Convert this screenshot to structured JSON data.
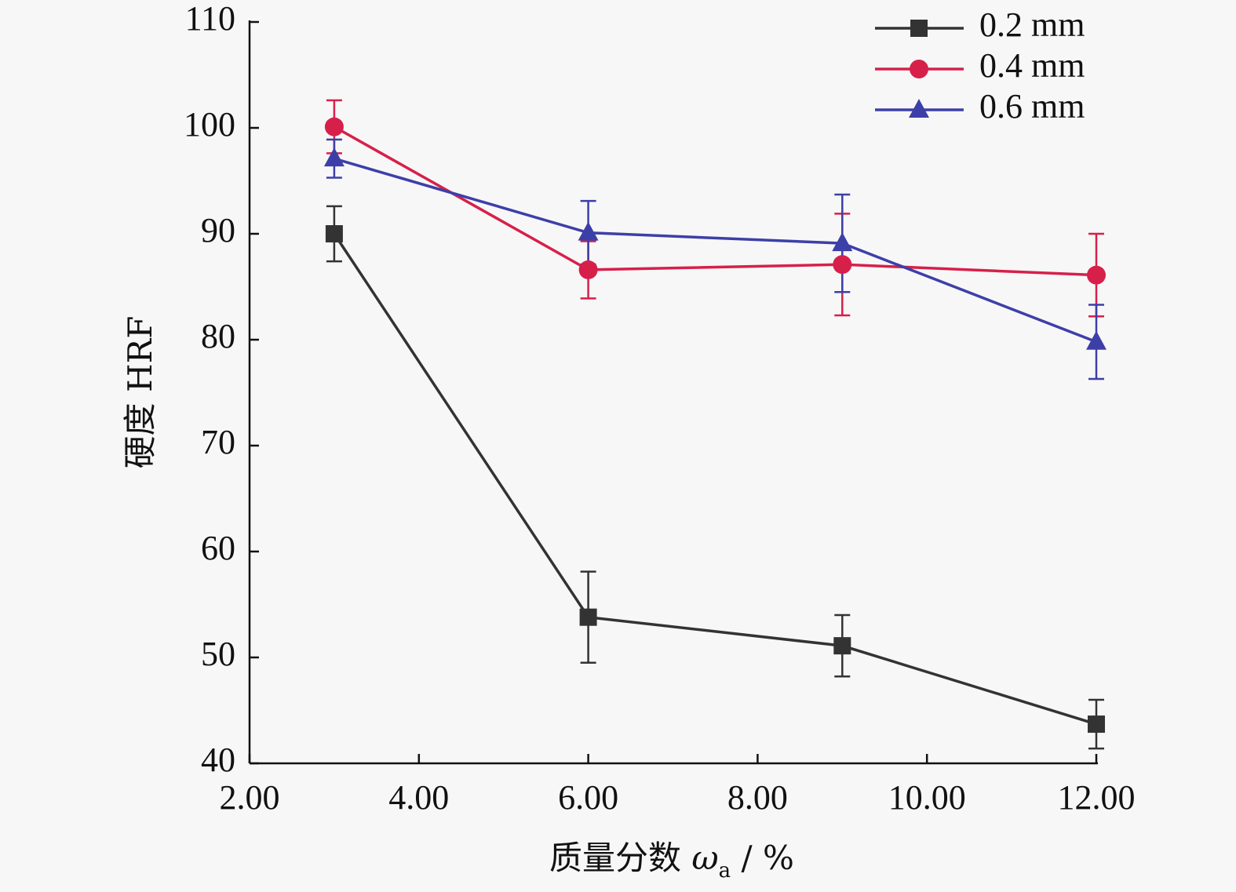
{
  "chart_data": {
    "type": "line",
    "xlabel_main": "质量分数 ",
    "xlabel_symbol": "ω",
    "xlabel_sub": "a",
    "xlabel_unit": " / %",
    "ylabel": "硬度 HRF",
    "xlim": [
      2,
      12
    ],
    "ylim": [
      40,
      110
    ],
    "x_ticks": [
      "2.00",
      "4.00",
      "6.00",
      "8.00",
      "10.00",
      "12.00"
    ],
    "y_ticks": [
      "40",
      "50",
      "60",
      "70",
      "80",
      "90",
      "100",
      "110"
    ],
    "x": [
      3,
      6,
      9,
      12
    ],
    "legend_position": "top-right",
    "series": [
      {
        "name": "0.2 mm",
        "color": "#333333",
        "marker": "square",
        "values": [
          90.0,
          53.8,
          51.1,
          43.7
        ],
        "errors": [
          2.6,
          4.3,
          2.9,
          2.3
        ]
      },
      {
        "name": "0.4 mm",
        "color": "#d6204a",
        "marker": "circle",
        "values": [
          100.1,
          86.6,
          87.1,
          86.1
        ],
        "errors": [
          2.5,
          2.7,
          4.8,
          3.9
        ]
      },
      {
        "name": "0.6 mm",
        "color": "#3d3fa8",
        "marker": "triangle",
        "values": [
          97.1,
          90.1,
          89.1,
          79.8
        ],
        "errors": [
          1.8,
          3.0,
          4.6,
          3.5
        ]
      }
    ]
  }
}
